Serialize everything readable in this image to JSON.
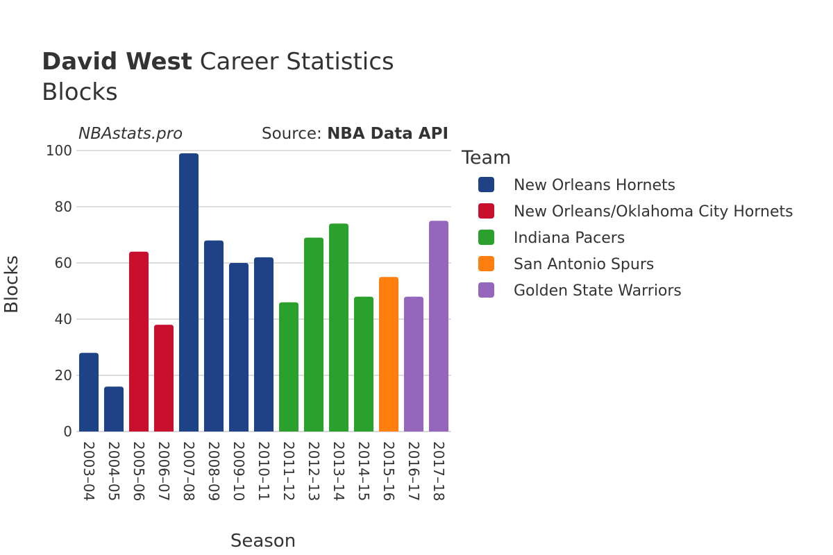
{
  "header": {
    "player_name": "David West",
    "title_rest": " Career Statistics",
    "subtitle": "Blocks",
    "watermark": "NBAstats.pro",
    "source_prefix": "Source: ",
    "source_name": "NBA Data API"
  },
  "legend": {
    "title": "Team",
    "placement": "right"
  },
  "chart_data": {
    "type": "bar",
    "title": "David West Career Statistics",
    "subtitle": "Blocks",
    "xlabel": "Season",
    "ylabel": "Blocks",
    "ylim": [
      0,
      100
    ],
    "yticks": [
      0,
      20,
      40,
      60,
      80,
      100
    ],
    "grid": true,
    "legend_title": "Team",
    "legend_position": "right",
    "teams": [
      {
        "name": "New Orleans Hornets",
        "color": "#1f4287"
      },
      {
        "name": "New Orleans/Oklahoma City Hornets",
        "color": "#c8102e"
      },
      {
        "name": "Indiana Pacers",
        "color": "#2ca02c"
      },
      {
        "name": "San Antonio Spurs",
        "color": "#ff7f0e"
      },
      {
        "name": "Golden State Warriors",
        "color": "#9467bd"
      }
    ],
    "categories": [
      "2003–04",
      "2004–05",
      "2005–06",
      "2006–07",
      "2007–08",
      "2008–09",
      "2009–10",
      "2010–11",
      "2011–12",
      "2012–13",
      "2013–14",
      "2014–15",
      "2015–16",
      "2016–17",
      "2017–18"
    ],
    "values": [
      28,
      16,
      64,
      38,
      99,
      68,
      60,
      62,
      46,
      69,
      74,
      48,
      55,
      48,
      75
    ],
    "bar_team": [
      "New Orleans Hornets",
      "New Orleans Hornets",
      "New Orleans/Oklahoma City Hornets",
      "New Orleans/Oklahoma City Hornets",
      "New Orleans Hornets",
      "New Orleans Hornets",
      "New Orleans Hornets",
      "New Orleans Hornets",
      "Indiana Pacers",
      "Indiana Pacers",
      "Indiana Pacers",
      "Indiana Pacers",
      "San Antonio Spurs",
      "Golden State Warriors",
      "Golden State Warriors"
    ]
  }
}
